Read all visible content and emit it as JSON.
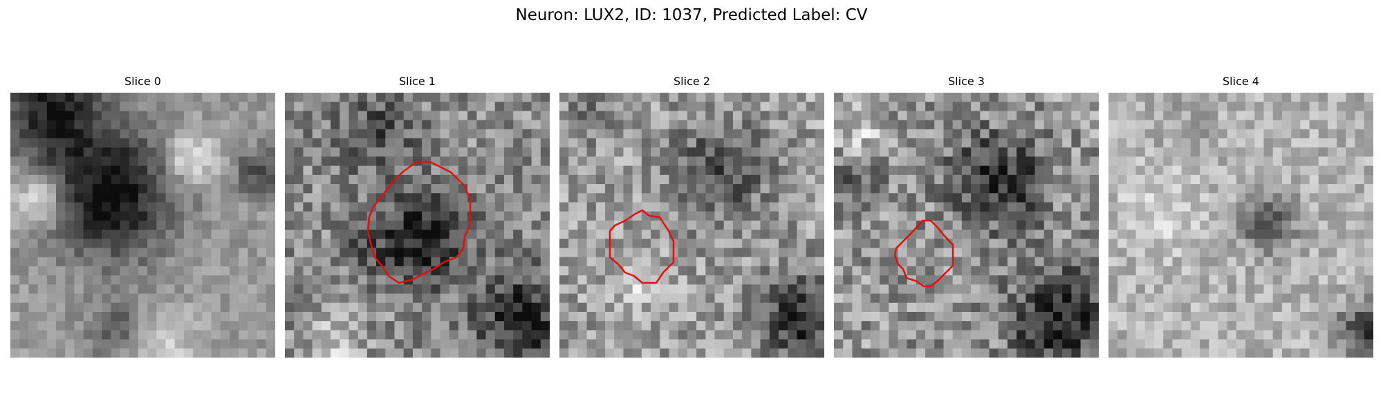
{
  "figure": {
    "title": "Neuron: LUX2, ID: 1037, Predicted Label: CV"
  },
  "outline_color": "#e01010",
  "slices": [
    {
      "label": "Slice 0",
      "has_outline": false
    },
    {
      "label": "Slice 1",
      "has_outline": true
    },
    {
      "label": "Slice 2",
      "has_outline": true
    },
    {
      "label": "Slice 3",
      "has_outline": true
    },
    {
      "label": "Slice 4",
      "has_outline": false
    }
  ]
}
